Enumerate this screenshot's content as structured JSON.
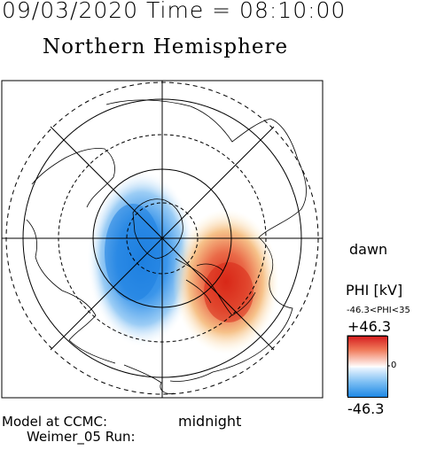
{
  "header": {
    "datetime": "09/03/2020 Time = 08:10:00",
    "hemisphere": "Northern Hemisphere"
  },
  "map_labels": {
    "dawn": "dawn",
    "midnight": "midnight"
  },
  "colorbar": {
    "title": "PHI [kV]",
    "range_label": "-46.3<PHI<35",
    "max_label": "+46.3",
    "zero_label": "0",
    "min_label": "-46.3",
    "positive_color": "#d62020",
    "negative_color": "#1e88e5"
  },
  "footer": {
    "line1": "Model at CCMC:",
    "line2": "Weimer_05 Run:"
  }
}
